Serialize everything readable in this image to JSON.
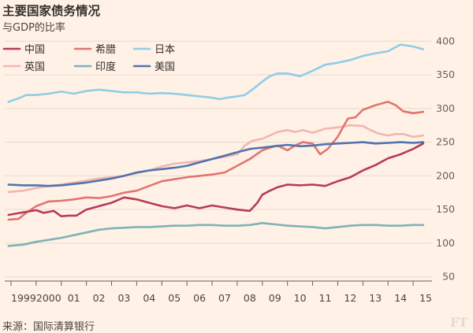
{
  "header": {
    "title": "主要国家债务情况",
    "subtitle": "与GDP的比率"
  },
  "footer": {
    "source": "来源：国际清算银行",
    "logo": "FT"
  },
  "colors": {
    "background": "#fff1e5",
    "grid": "#e6d9ce",
    "axis": "#66605c"
  },
  "chart_data": {
    "type": "line",
    "title": "主要国家债务情况",
    "subtitle": "与GDP的比率",
    "xlabel": "",
    "ylabel": "",
    "xlim": [
      1998.75,
      2015.75
    ],
    "ylim": [
      45,
      405
    ],
    "y_ticks": [
      50,
      100,
      150,
      200,
      250,
      300,
      350,
      400
    ],
    "x_ticks": [
      {
        "x": 1999.5,
        "label": "1999"
      },
      {
        "x": 2000.5,
        "label": "2000"
      },
      {
        "x": 2001.5,
        "label": "01"
      },
      {
        "x": 2002.5,
        "label": "02"
      },
      {
        "x": 2003.5,
        "label": "03"
      },
      {
        "x": 2004.5,
        "label": "04"
      },
      {
        "x": 2005.5,
        "label": "05"
      },
      {
        "x": 2006.5,
        "label": "06"
      },
      {
        "x": 2007.5,
        "label": "07"
      },
      {
        "x": 2008.5,
        "label": "08"
      },
      {
        "x": 2009.5,
        "label": "09"
      },
      {
        "x": 2010.5,
        "label": "10"
      },
      {
        "x": 2011.5,
        "label": "11"
      },
      {
        "x": 2012.5,
        "label": "12"
      },
      {
        "x": 2013.5,
        "label": "13"
      },
      {
        "x": 2014.5,
        "label": "14"
      },
      {
        "x": 2015.5,
        "label": "15"
      }
    ],
    "x_minor_ticks": [
      1999,
      2000,
      2001,
      2002,
      2003,
      2004,
      2005,
      2006,
      2007,
      2008,
      2009,
      2010,
      2011,
      2012,
      2013,
      2014,
      2015
    ],
    "y_axis_side": "right",
    "grid": true,
    "legend_position": "top-left",
    "series": [
      {
        "name": "中国",
        "color": "#b73b58",
        "x": [
          1998.9,
          1999.5,
          2000.0,
          2000.3,
          2000.7,
          2001.0,
          2001.3,
          2001.6,
          2002.0,
          2002.5,
          2003.0,
          2003.5,
          2004.0,
          2004.5,
          2005.0,
          2005.5,
          2006.0,
          2006.5,
          2007.0,
          2007.5,
          2008.0,
          2008.5,
          2008.8,
          2009.0,
          2009.3,
          2009.6,
          2010.0,
          2010.5,
          2011.0,
          2011.5,
          2012.0,
          2012.5,
          2013.0,
          2013.5,
          2014.0,
          2014.5,
          2015.0,
          2015.4
        ],
        "y": [
          142,
          146,
          149,
          145,
          148,
          140,
          141,
          141,
          150,
          155,
          160,
          168,
          165,
          160,
          155,
          152,
          156,
          152,
          156,
          153,
          150,
          148,
          160,
          172,
          178,
          183,
          187,
          186,
          187,
          185,
          192,
          198,
          208,
          216,
          226,
          232,
          240,
          248
        ]
      },
      {
        "name": "希腊",
        "color": "#e07570",
        "x": [
          1998.9,
          1999.3,
          1999.6,
          2000.0,
          2000.5,
          2001.0,
          2001.5,
          2002.0,
          2002.5,
          2003.0,
          2003.5,
          2004.0,
          2004.5,
          2005.0,
          2005.5,
          2006.0,
          2006.5,
          2007.0,
          2007.5,
          2008.0,
          2008.5,
          2009.0,
          2009.3,
          2009.6,
          2010.0,
          2010.3,
          2010.6,
          2011.0,
          2011.3,
          2011.6,
          2012.0,
          2012.4,
          2012.7,
          2013.0,
          2013.5,
          2014.0,
          2014.3,
          2014.6,
          2015.0,
          2015.4
        ],
        "y": [
          135,
          136,
          145,
          155,
          162,
          163,
          165,
          168,
          167,
          170,
          175,
          178,
          185,
          192,
          195,
          198,
          200,
          202,
          205,
          215,
          225,
          238,
          242,
          245,
          238,
          245,
          250,
          248,
          232,
          240,
          258,
          285,
          287,
          298,
          305,
          310,
          305,
          296,
          293,
          295
        ]
      },
      {
        "name": "日本",
        "color": "#8fcde8",
        "x": [
          1998.9,
          1999.3,
          1999.6,
          2000.0,
          2000.5,
          2001.0,
          2001.5,
          2002.0,
          2002.5,
          2003.0,
          2003.5,
          2004.0,
          2004.5,
          2005.0,
          2005.5,
          2006.0,
          2006.5,
          2007.0,
          2007.3,
          2007.6,
          2008.0,
          2008.3,
          2008.6,
          2009.0,
          2009.3,
          2009.6,
          2010.0,
          2010.5,
          2011.0,
          2011.5,
          2012.0,
          2012.5,
          2013.0,
          2013.5,
          2014.0,
          2014.5,
          2015.0,
          2015.4
        ],
        "y": [
          310,
          315,
          320,
          320,
          322,
          325,
          322,
          326,
          328,
          326,
          324,
          324,
          322,
          323,
          322,
          320,
          318,
          316,
          314,
          316,
          318,
          320,
          328,
          340,
          348,
          352,
          352,
          348,
          356,
          365,
          368,
          372,
          378,
          382,
          385,
          395,
          392,
          388
        ]
      },
      {
        "name": "英国",
        "color": "#f2b6b2",
        "x": [
          1998.9,
          1999.5,
          2000.0,
          2000.5,
          2001.0,
          2001.5,
          2002.0,
          2002.5,
          2003.0,
          2003.5,
          2004.0,
          2004.5,
          2005.0,
          2005.5,
          2006.0,
          2006.5,
          2007.0,
          2007.5,
          2008.0,
          2008.3,
          2008.6,
          2009.0,
          2009.3,
          2009.6,
          2010.0,
          2010.3,
          2010.6,
          2011.0,
          2011.5,
          2012.0,
          2012.5,
          2013.0,
          2013.3,
          2013.6,
          2014.0,
          2014.3,
          2014.6,
          2015.0,
          2015.4
        ],
        "y": [
          176,
          178,
          182,
          185,
          187,
          190,
          193,
          196,
          198,
          200,
          204,
          208,
          214,
          218,
          220,
          222,
          225,
          228,
          232,
          245,
          252,
          255,
          260,
          265,
          268,
          265,
          268,
          264,
          270,
          272,
          275,
          274,
          268,
          263,
          260,
          262,
          262,
          258,
          260
        ]
      },
      {
        "name": "印度",
        "color": "#7fb2b8",
        "x": [
          1998.9,
          1999.5,
          2000.0,
          2000.5,
          2001.0,
          2001.5,
          2002.0,
          2002.5,
          2003.0,
          2003.5,
          2004.0,
          2004.5,
          2005.0,
          2005.5,
          2006.0,
          2006.5,
          2007.0,
          2007.5,
          2008.0,
          2008.5,
          2009.0,
          2009.5,
          2010.0,
          2010.5,
          2011.0,
          2011.5,
          2012.0,
          2012.5,
          2013.0,
          2013.5,
          2014.0,
          2014.5,
          2015.0,
          2015.4
        ],
        "y": [
          96,
          98,
          102,
          105,
          108,
          112,
          116,
          120,
          122,
          123,
          124,
          124,
          125,
          126,
          126,
          127,
          127,
          126,
          126,
          127,
          130,
          128,
          126,
          125,
          124,
          122,
          124,
          126,
          127,
          127,
          126,
          126,
          127,
          127
        ]
      },
      {
        "name": "美国",
        "color": "#4e74b0",
        "x": [
          1998.9,
          1999.5,
          2000.0,
          2000.5,
          2001.0,
          2001.5,
          2002.0,
          2002.5,
          2003.0,
          2003.5,
          2004.0,
          2004.5,
          2005.0,
          2005.5,
          2006.0,
          2006.5,
          2007.0,
          2007.5,
          2008.0,
          2008.5,
          2009.0,
          2009.5,
          2010.0,
          2010.5,
          2011.0,
          2011.5,
          2012.0,
          2012.5,
          2013.0,
          2013.5,
          2014.0,
          2014.5,
          2015.0,
          2015.4
        ],
        "y": [
          187,
          186,
          186,
          185,
          186,
          188,
          190,
          193,
          196,
          200,
          205,
          208,
          210,
          212,
          215,
          220,
          225,
          230,
          235,
          240,
          242,
          244,
          246,
          244,
          245,
          247,
          248,
          249,
          250,
          248,
          249,
          250,
          249,
          250
        ]
      }
    ]
  }
}
